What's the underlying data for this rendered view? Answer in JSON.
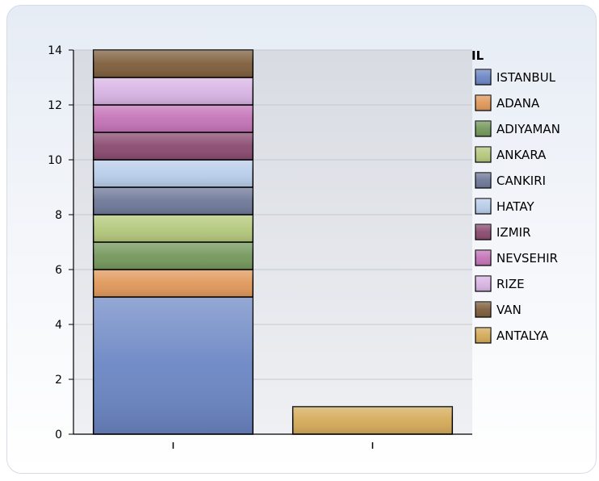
{
  "chart_data": {
    "type": "bar",
    "stacked": true,
    "categories": [
      "",
      ""
    ],
    "ylim": [
      0,
      14
    ],
    "yticks": [
      0,
      2,
      4,
      6,
      8,
      10,
      12,
      14
    ],
    "grid": true,
    "legend_placement": "right",
    "legend_title": "IL",
    "series": [
      {
        "name": "ISTANBUL",
        "values": [
          5,
          0
        ],
        "color": "#6b86c4"
      },
      {
        "name": "ADANA",
        "values": [
          1,
          0
        ],
        "color": "#e0985a"
      },
      {
        "name": "ADIYAMAN",
        "values": [
          1,
          0
        ],
        "color": "#74985c"
      },
      {
        "name": "ANKARA",
        "values": [
          1,
          0
        ],
        "color": "#b4c87c"
      },
      {
        "name": "CANKIRI",
        "values": [
          1,
          0
        ],
        "color": "#6e7898"
      },
      {
        "name": "HATAY",
        "values": [
          1,
          0
        ],
        "color": "#b8cdea"
      },
      {
        "name": "IZMIR",
        "values": [
          1,
          0
        ],
        "color": "#8a4a70"
      },
      {
        "name": "NEVSEHIR",
        "values": [
          1,
          0
        ],
        "color": "#c473b7"
      },
      {
        "name": "RIZE",
        "values": [
          1,
          0
        ],
        "color": "#d8b4e4"
      },
      {
        "name": "VAN",
        "values": [
          1,
          0
        ],
        "color": "#7e5e3c"
      },
      {
        "name": "ANTALYA",
        "values": [
          0,
          1
        ],
        "color": "#d4aa58"
      }
    ]
  }
}
